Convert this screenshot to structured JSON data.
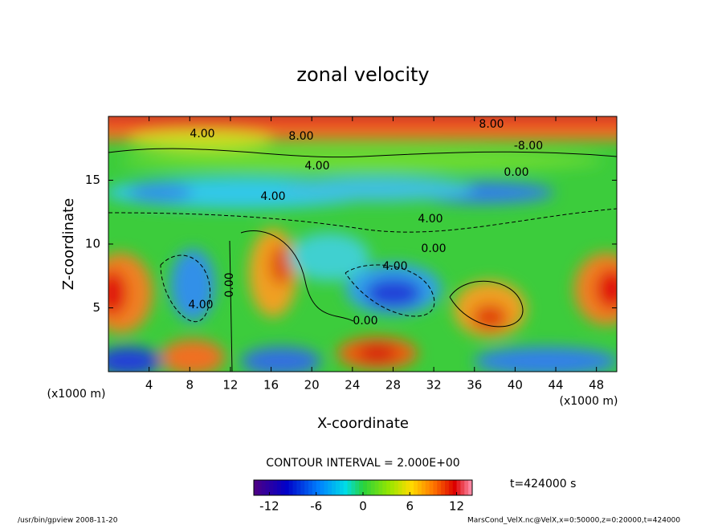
{
  "chart_data": {
    "type": "contour",
    "title": "zonal velocity",
    "x_label": "X-coordinate",
    "y_label": "Z-coordinate",
    "x_unit": "(x1000 m)",
    "xlim": [
      0,
      50
    ],
    "xticks": [
      4,
      8,
      12,
      16,
      20,
      24,
      28,
      32,
      36,
      40,
      44,
      48
    ],
    "ylim": [
      0,
      20
    ],
    "yticks": [
      5,
      10,
      15
    ],
    "contour_interval": "CONTOUR INTERVAL = 2.000E+00",
    "time": "t=424000 s",
    "clim": [
      -14,
      14
    ],
    "cticks": [
      -12,
      -6,
      0,
      6,
      12
    ],
    "contour_labels": [
      {
        "value": 4,
        "label": "4.00"
      },
      {
        "value": 8,
        "label": "8.00"
      },
      {
        "value": 8,
        "label": "8.00"
      },
      {
        "value": -8,
        "label": "-8.00"
      },
      {
        "value": 4,
        "label": "4.00"
      },
      {
        "value": 0,
        "label": "0.00"
      },
      {
        "value": 4,
        "label": "4.00"
      },
      {
        "value": 4,
        "label": "4.00"
      },
      {
        "value": 0,
        "label": "0.00"
      },
      {
        "value": 4,
        "label": "4.00"
      },
      {
        "value": 0,
        "label": "0.00"
      },
      {
        "value": 4,
        "label": "4.00"
      },
      {
        "value": 0,
        "label": "0.00"
      }
    ],
    "footer_left": "/usr/bin/gpview  2008-11-20",
    "footer_right": "MarsCond_VelX.nc@VelX,x=0:50000,z=0:20000,t=424000"
  }
}
